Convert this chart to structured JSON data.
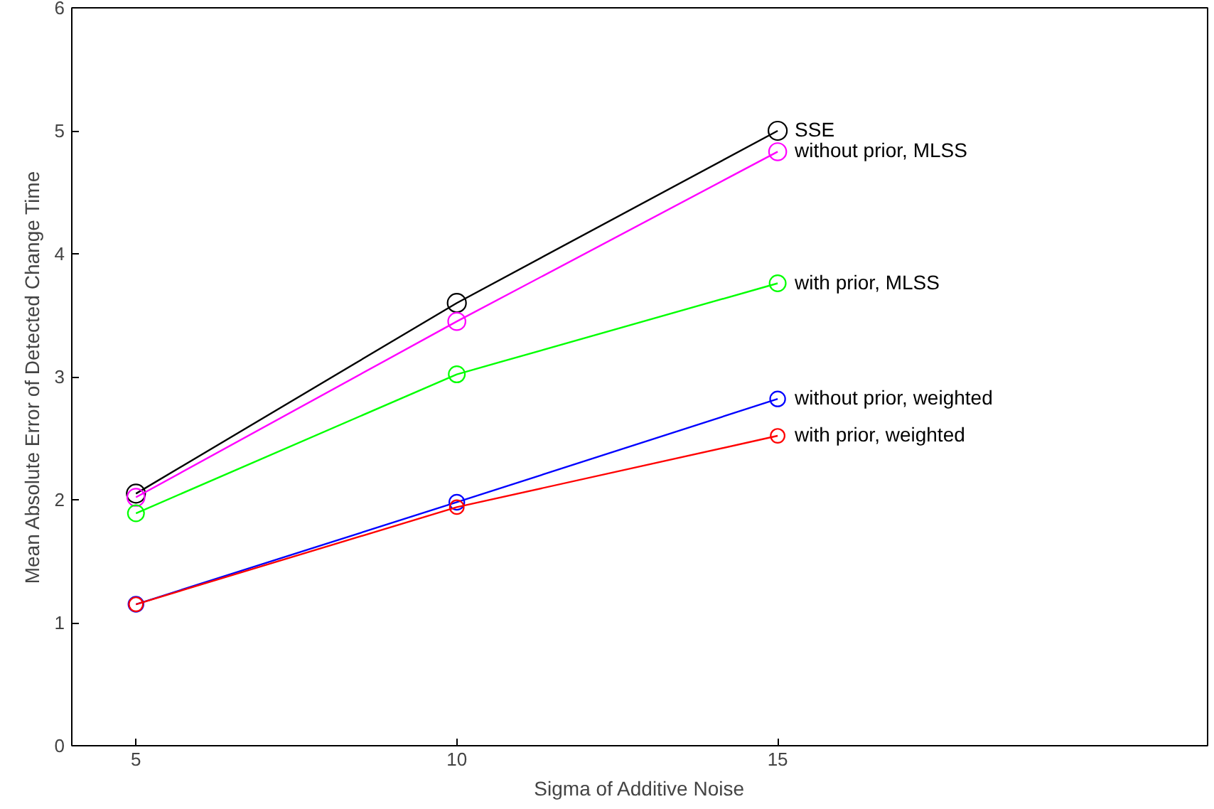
{
  "chart_data": {
    "type": "line",
    "xlabel": "Sigma of Additive Noise",
    "ylabel": "Mean Absolute Error of Detected Change Time",
    "x": [
      5,
      10,
      15
    ],
    "series": [
      {
        "name": "SSE",
        "color": "#000000",
        "values": [
          2.05,
          3.6,
          5.0
        ]
      },
      {
        "name": "without prior, MLSS",
        "color": "#ff00ff",
        "values": [
          2.02,
          3.45,
          4.83
        ]
      },
      {
        "name": "with prior, MLSS",
        "color": "#00ff00",
        "values": [
          1.89,
          3.02,
          3.76
        ]
      },
      {
        "name": "without prior, weighted",
        "color": "#0000ff",
        "values": [
          1.15,
          1.98,
          2.82
        ]
      },
      {
        "name": "with prior, weighted",
        "color": "#ff0000",
        "values": [
          1.15,
          1.94,
          2.52
        ]
      }
    ],
    "xlim": [
      4,
      21.7
    ],
    "xticks": [
      5,
      10,
      15
    ],
    "ylim": [
      0,
      6
    ],
    "yticks": [
      0,
      1,
      2,
      3,
      4,
      5,
      6
    ],
    "grid": false,
    "legend": false,
    "marker": "circle",
    "line_style": "solid"
  }
}
